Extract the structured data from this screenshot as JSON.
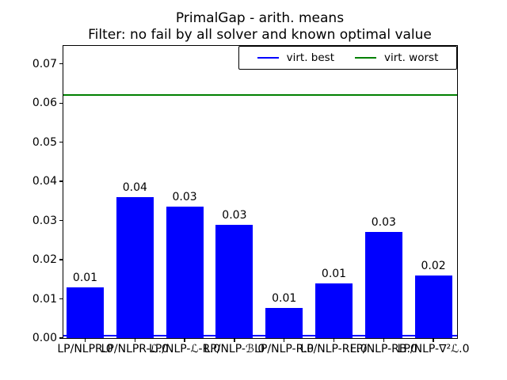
{
  "figure": {
    "title": "PrimalGap - arith. means",
    "subtitle": "Filter: no fail by all solver and known optimal value"
  },
  "legend": {
    "items": [
      {
        "label": "virt. best",
        "color": "#0000ff"
      },
      {
        "label": "virt. worst",
        "color": "#008000"
      }
    ]
  },
  "chart_data": {
    "type": "bar",
    "title": "PrimalGap - arith. means",
    "subtitle": "Filter: no fail by all solver and known optimal value",
    "categories": [
      "LP/NLPR.0",
      "LP/NLPR-ℒ.0",
      "LP/NLP-ℒ-R.0",
      "LP/NLP-ℬ.0",
      "LP/NLP-R.0",
      "LP/NLP-RE.0",
      "LP/NLP-RB.0",
      "LP/NLP-∇²ℒ.0"
    ],
    "values": [
      0.013,
      0.036,
      0.0335,
      0.029,
      0.0077,
      0.014,
      0.027,
      0.016
    ],
    "bar_labels": [
      "0.01",
      "0.04",
      "0.03",
      "0.03",
      "0.01",
      "0.01",
      "0.03",
      "0.02"
    ],
    "bar_color": "#0000ff",
    "hlines": [
      {
        "name": "virt. worst",
        "value": 0.062,
        "color": "#008000"
      },
      {
        "name": "virt. best",
        "value": 0.0006,
        "color": "#0000ff"
      }
    ],
    "ylim": [
      0,
      0.0746
    ],
    "yticks": [
      0.0,
      0.01,
      0.02,
      0.03,
      0.04,
      0.05,
      0.06,
      0.07
    ],
    "ytick_labels": [
      "0.00",
      "0.01",
      "0.02",
      "0.03",
      "0.04",
      "0.05",
      "0.06",
      "0.07"
    ],
    "xlabel": "",
    "ylabel": "",
    "grid": false,
    "legend_position": "upper right inside, horizontal",
    "legend_entries": [
      "virt. best",
      "virt. worst"
    ]
  }
}
